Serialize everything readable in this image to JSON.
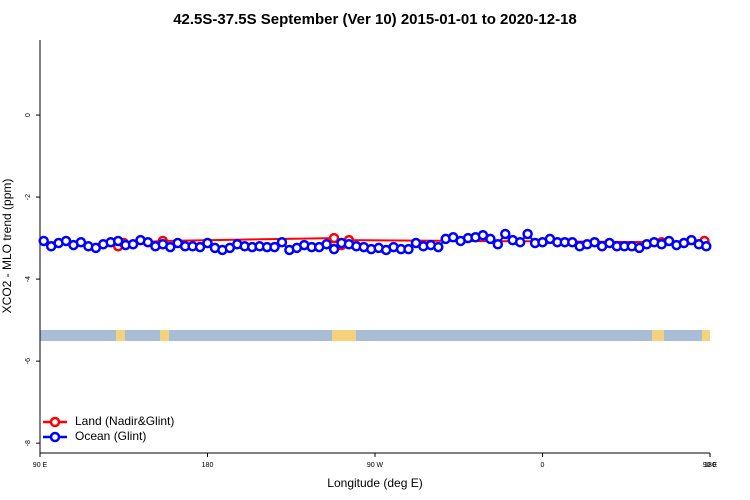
{
  "chart_data": {
    "type": "line",
    "title": "42.5S-37.5S September (Ver 10)   2015-01-01 to 2020-12-18",
    "x_label": "Longitude (deg E)",
    "y_label": "XCO2 - MLO trend (ppm)",
    "xlim": [
      90,
      450
    ],
    "xticks": [
      {
        "value": 90,
        "label": "90 E"
      },
      {
        "value": 180,
        "label": "180"
      },
      {
        "value": 270,
        "label": "90 W"
      },
      {
        "value": 360,
        "label": "0"
      },
      {
        "value": 450,
        "label": "90 E"
      },
      {
        "value": 540,
        "label": "180"
      }
    ],
    "ylim": [
      -8.24,
      1.83
    ],
    "yticks": [
      0,
      -2,
      -4,
      -6,
      -8
    ],
    "legend": "bottom-left",
    "series": [
      {
        "name": "Land (Nadir&Glint)",
        "color": "#ff0000",
        "x": [
          132,
          135,
          156,
          248,
          252,
          256,
          424,
          447
        ],
        "values": [
          -3.2,
          -3.12,
          -3.07,
          -3.0,
          -3.17,
          -3.05,
          -3.1,
          -3.07
        ]
      },
      {
        "name": "Ocean (Glint)",
        "color": "#0000ff",
        "x": [
          92,
          96,
          100,
          104,
          108,
          112,
          116,
          120,
          124,
          128,
          132,
          136,
          140,
          144,
          148,
          152,
          156,
          160,
          164,
          168,
          172,
          176,
          180,
          184,
          188,
          192,
          196,
          200,
          204,
          208,
          212,
          216,
          220,
          224,
          228,
          232,
          236,
          240,
          244,
          248,
          252,
          256,
          260,
          264,
          268,
          272,
          276,
          280,
          284,
          288,
          292,
          296,
          300,
          304,
          308,
          312,
          316,
          320,
          324,
          328,
          332,
          336,
          340,
          344,
          348,
          352,
          356,
          360,
          364,
          368,
          372,
          376,
          380,
          384,
          388,
          392,
          396,
          400,
          404,
          408,
          412,
          416,
          420,
          424,
          428,
          432,
          436,
          440,
          444,
          448
        ],
        "values": [
          -3.07,
          -3.2,
          -3.12,
          -3.07,
          -3.17,
          -3.1,
          -3.2,
          -3.24,
          -3.15,
          -3.1,
          -3.07,
          -3.17,
          -3.15,
          -3.05,
          -3.1,
          -3.2,
          -3.15,
          -3.22,
          -3.12,
          -3.2,
          -3.2,
          -3.22,
          -3.12,
          -3.24,
          -3.29,
          -3.24,
          -3.15,
          -3.2,
          -3.22,
          -3.2,
          -3.22,
          -3.22,
          -3.1,
          -3.29,
          -3.24,
          -3.17,
          -3.22,
          -3.22,
          -3.15,
          -3.27,
          -3.12,
          -3.15,
          -3.2,
          -3.22,
          -3.27,
          -3.24,
          -3.29,
          -3.22,
          -3.27,
          -3.27,
          -3.12,
          -3.2,
          -3.17,
          -3.22,
          -3.02,
          -2.98,
          -3.07,
          -3.0,
          -2.98,
          -2.93,
          -3.02,
          -3.15,
          -2.9,
          -3.05,
          -3.1,
          -2.9,
          -3.12,
          -3.1,
          -3.02,
          -3.1,
          -3.1,
          -3.1,
          -3.2,
          -3.15,
          -3.1,
          -3.2,
          -3.12,
          -3.2,
          -3.2,
          -3.2,
          -3.24,
          -3.15,
          -3.1,
          -3.15,
          -3.07,
          -3.17,
          -3.12,
          -3.05,
          -3.15,
          -3.2
        ]
      }
    ]
  }
}
